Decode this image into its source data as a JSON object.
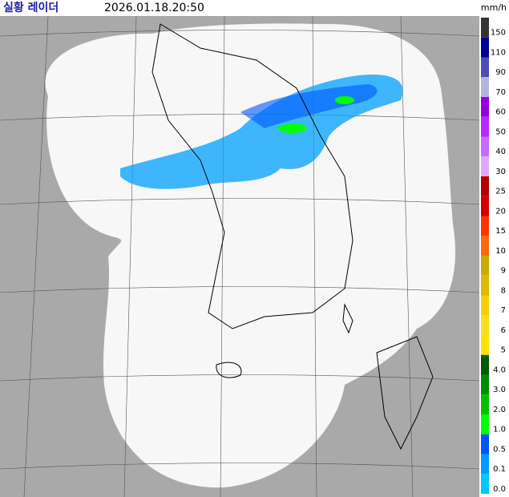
{
  "header": {
    "title": "실황 레이더",
    "timestamp": "2026.01.18.20:50",
    "unit": "mm/h"
  },
  "legend": {
    "items": [
      {
        "label": "150",
        "color": "#333333"
      },
      {
        "label": "110",
        "color": "#000390"
      },
      {
        "label": "90",
        "color": "#4c4eb1"
      },
      {
        "label": "70",
        "color": "#b3b4de"
      },
      {
        "label": "60",
        "color": "#9300e4"
      },
      {
        "label": "50",
        "color": "#b329ff"
      },
      {
        "label": "40",
        "color": "#c969ff"
      },
      {
        "label": "30",
        "color": "#e0a9ff"
      },
      {
        "label": "25",
        "color": "#b40000"
      },
      {
        "label": "20",
        "color": "#d20000"
      },
      {
        "label": "15",
        "color": "#ff3200"
      },
      {
        "label": "10",
        "color": "#ff660e"
      },
      {
        "label": "9",
        "color": "#ccaa00"
      },
      {
        "label": "8",
        "color": "#e0b900"
      },
      {
        "label": "7",
        "color": "#f9cd00"
      },
      {
        "label": "6",
        "color": "#ffdc1f"
      },
      {
        "label": "5",
        "color": "#ffe100"
      },
      {
        "label": "4.0",
        "color": "#005a00"
      },
      {
        "label": "3.0",
        "color": "#008c00"
      },
      {
        "label": "2.0",
        "color": "#00be00"
      },
      {
        "label": "1.0",
        "color": "#00ff00"
      },
      {
        "label": "0.5",
        "color": "#0055ff"
      },
      {
        "label": "0.1",
        "color": "#009bff"
      },
      {
        "label": "0.0",
        "color": "#00c8ff"
      }
    ]
  }
}
